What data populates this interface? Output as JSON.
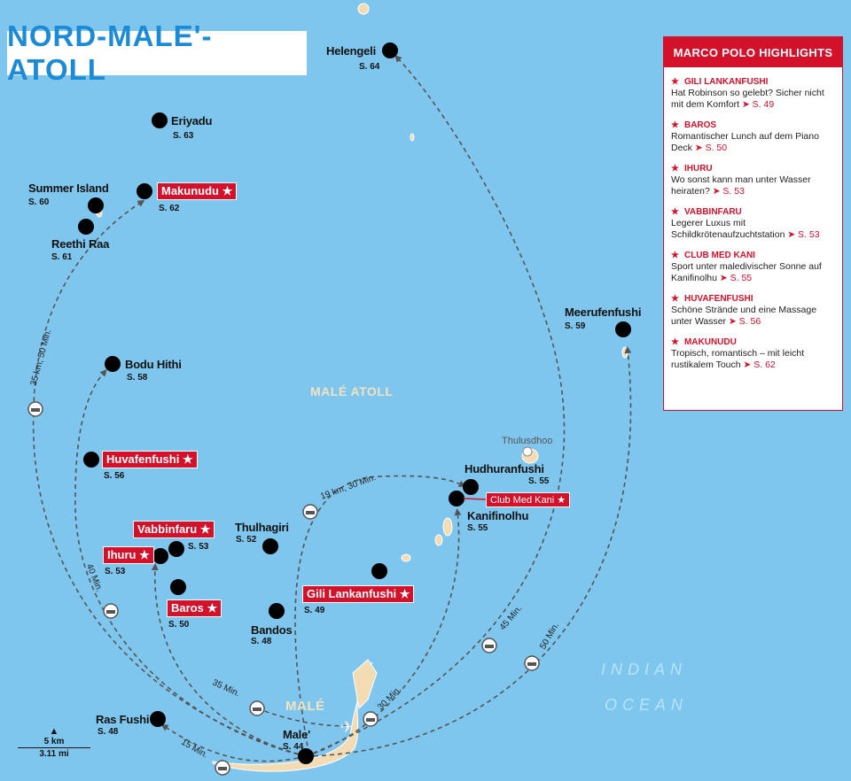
{
  "title": "NORD-MALE'-ATOLL",
  "colors": {
    "water": "#7fc6ee",
    "land": "#f3dcb4",
    "accent": "#d4112b",
    "title": "#1d8ad6"
  },
  "places": {
    "helengeli": {
      "name": "Helengeli",
      "page": "S. 64"
    },
    "eriyadu": {
      "name": "Eriyadu",
      "page": "S. 63"
    },
    "summer": {
      "name": "Summer Island",
      "page": "S. 60"
    },
    "reethi": {
      "name": "Reethi Raa",
      "page": "S. 61"
    },
    "makunudu": {
      "name": "Makunudu ★",
      "page": "S. 62"
    },
    "bodu": {
      "name": "Bodu Hithi",
      "page": "S. 58"
    },
    "huvafen": {
      "name": "Huvafenfushi ★",
      "page": "S. 56"
    },
    "vabbin": {
      "name": "Vabbinfaru ★",
      "page": "S. 53"
    },
    "ihuru": {
      "name": "Ihuru ★",
      "page": "S. 53"
    },
    "thulhagiri": {
      "name": "Thulhagiri",
      "page": "S. 52"
    },
    "baros": {
      "name": "Baros ★",
      "page": "S. 50"
    },
    "bandos": {
      "name": "Bandos",
      "page": "S. 48"
    },
    "gili": {
      "name": "Gili Lankanfushi ★",
      "page": "S. 49"
    },
    "hudhuran": {
      "name": "Hudhuranfushi",
      "page": "S. 55"
    },
    "clubmed": {
      "name": "Club Med Kani ★"
    },
    "kanifin": {
      "name": "Kanifinolhu",
      "page": "S. 55"
    },
    "thulusdhoo": {
      "name": "Thulusdhoo"
    },
    "meeru": {
      "name": "Meerufenfushi",
      "page": "S. 59"
    },
    "rasfushi": {
      "name": "Ras Fushi",
      "page": "S. 48"
    },
    "male": {
      "name": "Male'",
      "page": "S. 44"
    }
  },
  "region_labels": {
    "atoll": "MALÉ ATOLL",
    "male": "MALÉ",
    "ocean1": "INDIAN",
    "ocean2": "OCEAN"
  },
  "routes": {
    "r1": "35 km, 50 Min.",
    "r2": "40 Min.",
    "r3": "35 Min.",
    "r4": "15 Min.",
    "r5": "19 km, 30 Min.",
    "r6": "30 Min.",
    "r7": "45 Min.",
    "r8": "50 Min."
  },
  "scale": {
    "km": "5 km",
    "mi": "3.11 mi"
  },
  "highlights": {
    "header": "MARCO POLO HIGHLIGHTS",
    "items": [
      {
        "name": "GILI LANKANFUSHI",
        "text": "Hat Robinson so gelebt? Sicher nicht mit dem Komfort",
        "page": "➤ S. 49"
      },
      {
        "name": "BAROS",
        "text": "Romantischer Lunch auf dem Piano Deck",
        "page": "➤ S. 50"
      },
      {
        "name": "IHURU",
        "text": "Wo sonst kann man unter Wasser heiraten?",
        "page": "➤ S. 53"
      },
      {
        "name": "VABBINFARU",
        "text": "Legerer Luxus mit Schildkrötenaufzuchtstation",
        "page": "➤ S. 53"
      },
      {
        "name": "CLUB MED KANI",
        "text": "Sport unter maledivischer Sonne auf Kanifinolhu",
        "page": "➤ S. 55"
      },
      {
        "name": "HUVAFENFUSHI",
        "text": "Schöne Strände und eine Massage unter Wasser",
        "page": "➤ S. 56"
      },
      {
        "name": "MAKUNUDU",
        "text": "Tropisch, romantisch – mit leicht rustikalem Touch",
        "page": "➤ S. 62"
      }
    ]
  }
}
